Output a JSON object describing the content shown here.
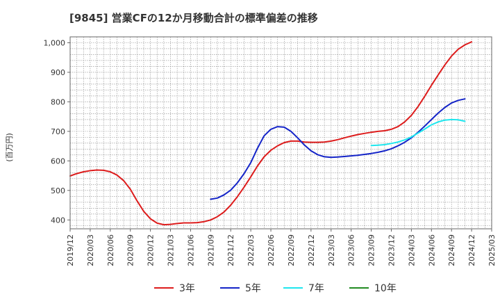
{
  "chart_data": {
    "type": "line",
    "title": "[9845]  営業CFの12か月移動合計の標準偏差の推移",
    "ylabel": "(百万円)",
    "xlabel": "",
    "ylim": [
      370,
      1020
    ],
    "y_ticks": [
      400,
      500,
      600,
      700,
      800,
      900,
      1000
    ],
    "y_tick_labels": [
      "400",
      "500",
      "600",
      "700",
      "800",
      "900",
      "1,000"
    ],
    "x_range": [
      "2019-12",
      "2025-03"
    ],
    "x_ticks": [
      "2019/12",
      "2020/03",
      "2020/06",
      "2020/09",
      "2020/12",
      "2021/03",
      "2021/06",
      "2021/09",
      "2021/12",
      "2022/03",
      "2022/06",
      "2022/09",
      "2022/12",
      "2023/03",
      "2023/06",
      "2023/09",
      "2023/12",
      "2024/03",
      "2024/06",
      "2024/09",
      "2024/12",
      "2025/03"
    ],
    "grid": true,
    "legend_position": "bottom",
    "series": [
      {
        "name": "3年",
        "color": "#dd1c1c",
        "points": [
          [
            "2019-12",
            549
          ],
          [
            "2020-01",
            557
          ],
          [
            "2020-02",
            563
          ],
          [
            "2020-03",
            567
          ],
          [
            "2020-04",
            569
          ],
          [
            "2020-05",
            568
          ],
          [
            "2020-06",
            563
          ],
          [
            "2020-07",
            552
          ],
          [
            "2020-08",
            533
          ],
          [
            "2020-09",
            504
          ],
          [
            "2020-10",
            465
          ],
          [
            "2020-11",
            429
          ],
          [
            "2020-12",
            404
          ],
          [
            "2021-01",
            389
          ],
          [
            "2021-02",
            384
          ],
          [
            "2021-03",
            385
          ],
          [
            "2021-04",
            388
          ],
          [
            "2021-05",
            390
          ],
          [
            "2021-06",
            390
          ],
          [
            "2021-07",
            391
          ],
          [
            "2021-08",
            394
          ],
          [
            "2021-09",
            400
          ],
          [
            "2021-10",
            411
          ],
          [
            "2021-11",
            427
          ],
          [
            "2021-12",
            450
          ],
          [
            "2022-01",
            479
          ],
          [
            "2022-02",
            511
          ],
          [
            "2022-03",
            546
          ],
          [
            "2022-04",
            583
          ],
          [
            "2022-05",
            614
          ],
          [
            "2022-06",
            636
          ],
          [
            "2022-07",
            651
          ],
          [
            "2022-08",
            662
          ],
          [
            "2022-09",
            667
          ],
          [
            "2022-10",
            667
          ],
          [
            "2022-11",
            664
          ],
          [
            "2022-12",
            663
          ],
          [
            "2023-01",
            663
          ],
          [
            "2023-02",
            664
          ],
          [
            "2023-03",
            667
          ],
          [
            "2023-04",
            672
          ],
          [
            "2023-05",
            678
          ],
          [
            "2023-06",
            684
          ],
          [
            "2023-07",
            689
          ],
          [
            "2023-08",
            693
          ],
          [
            "2023-09",
            697
          ],
          [
            "2023-10",
            700
          ],
          [
            "2023-11",
            702
          ],
          [
            "2023-12",
            707
          ],
          [
            "2024-01",
            716
          ],
          [
            "2024-02",
            732
          ],
          [
            "2024-03",
            754
          ],
          [
            "2024-04",
            784
          ],
          [
            "2024-05",
            819
          ],
          [
            "2024-06",
            856
          ],
          [
            "2024-07",
            891
          ],
          [
            "2024-08",
            925
          ],
          [
            "2024-09",
            955
          ],
          [
            "2024-10",
            978
          ],
          [
            "2024-11",
            993
          ],
          [
            "2024-12",
            1003
          ]
        ]
      },
      {
        "name": "5年",
        "color": "#1424c8",
        "points": [
          [
            "2021-09",
            470
          ],
          [
            "2021-10",
            474
          ],
          [
            "2021-11",
            485
          ],
          [
            "2021-12",
            501
          ],
          [
            "2022-01",
            526
          ],
          [
            "2022-02",
            557
          ],
          [
            "2022-03",
            594
          ],
          [
            "2022-04",
            643
          ],
          [
            "2022-05",
            685
          ],
          [
            "2022-06",
            707
          ],
          [
            "2022-07",
            716
          ],
          [
            "2022-08",
            714
          ],
          [
            "2022-09",
            700
          ],
          [
            "2022-10",
            678
          ],
          [
            "2022-11",
            654
          ],
          [
            "2022-12",
            634
          ],
          [
            "2023-01",
            621
          ],
          [
            "2023-02",
            614
          ],
          [
            "2023-03",
            612
          ],
          [
            "2023-04",
            613
          ],
          [
            "2023-05",
            615
          ],
          [
            "2023-06",
            617
          ],
          [
            "2023-07",
            619
          ],
          [
            "2023-08",
            622
          ],
          [
            "2023-09",
            625
          ],
          [
            "2023-10",
            629
          ],
          [
            "2023-11",
            634
          ],
          [
            "2023-12",
            641
          ],
          [
            "2024-01",
            651
          ],
          [
            "2024-02",
            663
          ],
          [
            "2024-03",
            678
          ],
          [
            "2024-04",
            697
          ],
          [
            "2024-05",
            718
          ],
          [
            "2024-06",
            740
          ],
          [
            "2024-07",
            762
          ],
          [
            "2024-08",
            781
          ],
          [
            "2024-09",
            796
          ],
          [
            "2024-10",
            805
          ],
          [
            "2024-11",
            810
          ]
        ]
      },
      {
        "name": "7年",
        "color": "#1ee6ee",
        "points": [
          [
            "2023-09",
            652
          ],
          [
            "2023-10",
            653
          ],
          [
            "2023-11",
            655
          ],
          [
            "2023-12",
            659
          ],
          [
            "2024-01",
            664
          ],
          [
            "2024-02",
            671
          ],
          [
            "2024-03",
            681
          ],
          [
            "2024-04",
            694
          ],
          [
            "2024-05",
            708
          ],
          [
            "2024-06",
            722
          ],
          [
            "2024-07",
            732
          ],
          [
            "2024-08",
            738
          ],
          [
            "2024-09",
            740
          ],
          [
            "2024-10",
            739
          ],
          [
            "2024-11",
            734
          ]
        ]
      },
      {
        "name": "10年",
        "color": "#228b22",
        "points": []
      }
    ]
  }
}
